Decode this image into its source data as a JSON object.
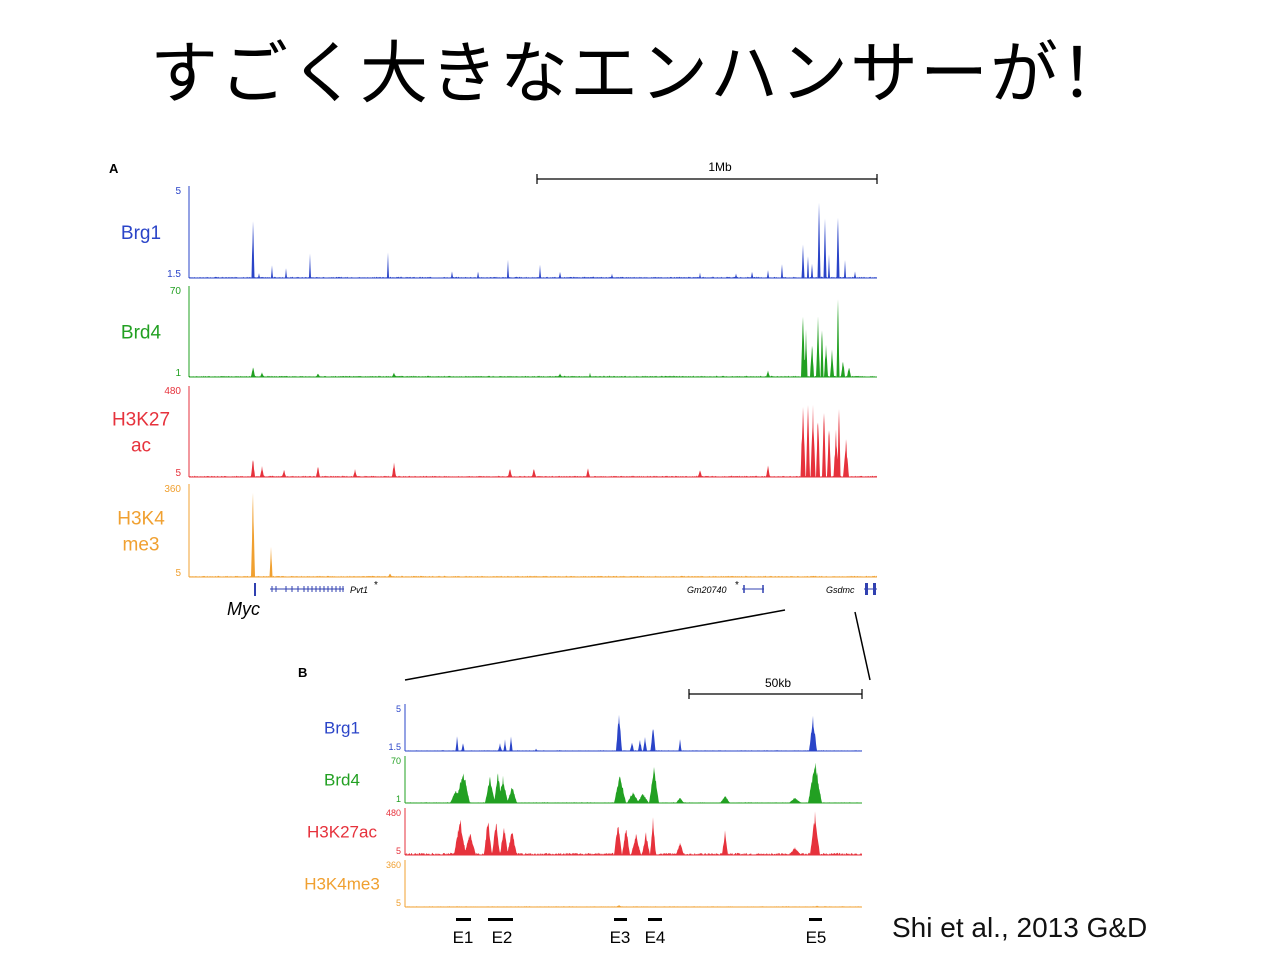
{
  "title": "すごく大きなエンハンサーが！",
  "citation": "Shi et al., 2013 G&D",
  "colors": {
    "Brg1": "#2a44c8",
    "Brd4": "#22a022",
    "H3K27ac": "#e6323c",
    "H3K4me3": "#f0a030"
  },
  "panelA": {
    "label": "A",
    "scale_label": "1Mb",
    "tracks": [
      {
        "key": "Brg1",
        "label_lines": [
          "Brg1"
        ],
        "ymax": "5",
        "ymin": "1.5"
      },
      {
        "key": "Brd4",
        "label_lines": [
          "Brd4"
        ],
        "ymax": "70",
        "ymin": "1"
      },
      {
        "key": "H3K27ac",
        "label_lines": [
          "H3K27",
          "ac"
        ],
        "ymax": "480",
        "ymin": "5"
      },
      {
        "key": "H3K4me3",
        "label_lines": [
          "H3K4",
          "me3"
        ],
        "ymax": "360",
        "ymin": "5"
      }
    ],
    "genes": {
      "myc": "Myc",
      "pvt1": "Pvt1",
      "gm": "Gm20740",
      "gsdmc": "Gsdmc",
      "star": "*"
    }
  },
  "panelB": {
    "label": "B",
    "scale_label": "50kb",
    "tracks": [
      {
        "key": "Brg1",
        "label": "Brg1",
        "ymax": "5",
        "ymin": "1.5"
      },
      {
        "key": "Brd4",
        "label": "Brd4",
        "ymax": "70",
        "ymin": "1"
      },
      {
        "key": "H3K27ac",
        "label": "H3K27ac",
        "ymax": "480",
        "ymin": "5"
      },
      {
        "key": "H3K4me3",
        "label": "H3K4me3",
        "ymax": "360",
        "ymin": "5"
      }
    ],
    "enhancers": [
      "E1",
      "E2",
      "E3",
      "E4",
      "E5"
    ]
  }
}
